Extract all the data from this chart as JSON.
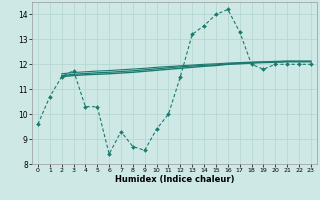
{
  "xlabel": "Humidex (Indice chaleur)",
  "xlim": [
    -0.5,
    23.5
  ],
  "ylim": [
    8,
    14.5
  ],
  "yticks": [
    8,
    9,
    10,
    11,
    12,
    13,
    14
  ],
  "xticks": [
    0,
    1,
    2,
    3,
    4,
    5,
    6,
    7,
    8,
    9,
    10,
    11,
    12,
    13,
    14,
    15,
    16,
    17,
    18,
    19,
    20,
    21,
    22,
    23
  ],
  "bg_color": "#cde8e5",
  "grid_color": "#b8d8d4",
  "line_color": "#1a7a6e",
  "line1_x": [
    0,
    1,
    2,
    3,
    4,
    5,
    6,
    7,
    8,
    9,
    10,
    11,
    12,
    13,
    14,
    15,
    16,
    17,
    18,
    19,
    20,
    21,
    22,
    23
  ],
  "line1_y": [
    9.6,
    10.7,
    11.5,
    11.75,
    10.3,
    10.3,
    8.4,
    9.3,
    8.7,
    8.55,
    9.4,
    10.0,
    11.5,
    13.2,
    13.55,
    14.0,
    14.2,
    13.3,
    12.0,
    11.8,
    12.0,
    12.0,
    12.0,
    12.0
  ],
  "line2_x": [
    2,
    3,
    4,
    5,
    6,
    7,
    8,
    9,
    10,
    11,
    12,
    13,
    14,
    15,
    16,
    17,
    18,
    19,
    20,
    21,
    22,
    23
  ],
  "line2_y": [
    11.5,
    11.55,
    11.58,
    11.6,
    11.62,
    11.65,
    11.68,
    11.72,
    11.76,
    11.8,
    11.84,
    11.88,
    11.92,
    11.95,
    12.0,
    12.02,
    12.05,
    12.07,
    12.08,
    12.1,
    12.1,
    12.1
  ],
  "line3_x": [
    2,
    3,
    4,
    5,
    6,
    7,
    8,
    9,
    10,
    11,
    12,
    13,
    14,
    15,
    16,
    17,
    18,
    19,
    20,
    21,
    22,
    23
  ],
  "line3_y": [
    11.55,
    11.6,
    11.63,
    11.66,
    11.68,
    11.71,
    11.74,
    11.78,
    11.82,
    11.86,
    11.9,
    11.93,
    11.96,
    11.98,
    12.02,
    12.04,
    12.07,
    12.09,
    12.1,
    12.12,
    12.12,
    12.12
  ],
  "line4_x": [
    2,
    3,
    4,
    5,
    6,
    7,
    8,
    9,
    10,
    11,
    12,
    13,
    14,
    15,
    16,
    17,
    18,
    19,
    20,
    21,
    22,
    23
  ],
  "line4_y": [
    11.62,
    11.67,
    11.7,
    11.73,
    11.75,
    11.78,
    11.81,
    11.84,
    11.88,
    11.91,
    11.94,
    11.97,
    12.0,
    12.02,
    12.05,
    12.07,
    12.09,
    12.1,
    12.12,
    12.13,
    12.13,
    12.13
  ]
}
